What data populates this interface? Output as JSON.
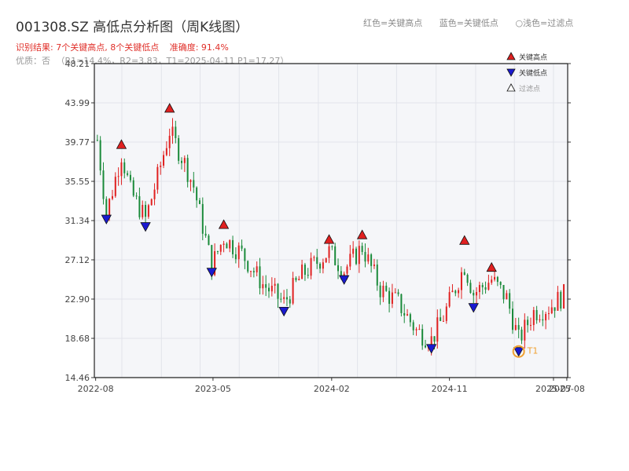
{
  "header": {
    "title": "001308.SZ 高低点分析图（周K线图）",
    "subtitle": {
      "result": "识别结果: 7个关键高点, 8个关键低点",
      "accuracy": "准确度: 91.4%"
    },
    "quality": {
      "label": "优质：否",
      "details": "（R1=14.4%，R2=3.83，T1=2025-04-11 P1=17.27）"
    },
    "legend_top": {
      "red": "红色=关键高点",
      "blue": "蓝色=关键低点",
      "light": "○浅色=过滤点"
    }
  },
  "chart_data": {
    "type": "candlestick",
    "title": "001308.SZ 高低点分析图（周K线图）",
    "y_ticks": [
      "14.46",
      "18.68",
      "22.90",
      "27.12",
      "31.34",
      "35.55",
      "39.77",
      "43.99",
      "48.21"
    ],
    "ylim": [
      14.46,
      48.21
    ],
    "x_ticks": [
      "2022-08",
      "2023-05",
      "2024-02",
      "2024-11",
      "2025-07",
      "2025-08"
    ],
    "grid": true,
    "legend": {
      "placement": "top-right",
      "entries": [
        {
          "label": "关键高点",
          "color": "#e02020",
          "marker": "triangle-up"
        },
        {
          "label": "关键低点",
          "color": "#1a1ad0",
          "marker": "triangle-down"
        },
        {
          "label": "过滤点",
          "color": "#ffffff",
          "marker": "triangle-up"
        }
      ]
    },
    "colors": {
      "up": "#e02020",
      "down": "#1a8a3a",
      "high_marker": "#e02020",
      "low_marker": "#1a1ad0",
      "t1": "#f0a030"
    },
    "key_highs": [
      {
        "date": "2022-09-30",
        "price": 39.5
      },
      {
        "date": "2023-01-20",
        "price": 43.4
      },
      {
        "date": "2023-05-26",
        "price": 30.9
      },
      {
        "date": "2024-01-26",
        "price": 29.3
      },
      {
        "date": "2024-04-12",
        "price": 29.8
      },
      {
        "date": "2024-12-06",
        "price": 29.2
      },
      {
        "date": "2025-02-07",
        "price": 26.3
      }
    ],
    "key_lows": [
      {
        "date": "2022-08-26",
        "price": 31.5
      },
      {
        "date": "2022-11-25",
        "price": 30.7
      },
      {
        "date": "2023-04-28",
        "price": 25.8
      },
      {
        "date": "2023-10-13",
        "price": 21.6
      },
      {
        "date": "2024-03-01",
        "price": 25.0
      },
      {
        "date": "2024-09-20",
        "price": 17.6
      },
      {
        "date": "2024-12-27",
        "price": 22.0
      },
      {
        "date": "2025-04-11",
        "price": 17.27
      }
    ],
    "t1": {
      "label": "T1",
      "date": "2025-04-11",
      "price": 17.27
    }
  }
}
